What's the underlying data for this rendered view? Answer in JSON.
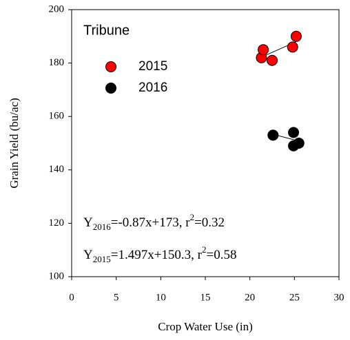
{
  "chart_data": {
    "type": "scatter",
    "title": "Tribune",
    "x_label": "Crop Water Use (in)",
    "y_label": "Grain Yield (bu/ac)",
    "xlim": [
      0,
      30
    ],
    "xticks": [
      0,
      5,
      10,
      15,
      20,
      25,
      30
    ],
    "ylim": [
      100,
      200
    ],
    "yticks": [
      100,
      120,
      140,
      160,
      180,
      200
    ],
    "grid": false,
    "legend": "upper left",
    "series": [
      {
        "name": "2015",
        "color": "#ff0000",
        "x": [
          21.3,
          21.5,
          22.5,
          24.8,
          25.2
        ],
        "values": [
          182,
          185,
          181,
          186,
          190
        ],
        "fit_x": [
          21.3,
          25.2
        ],
        "fit_values": [
          182.2,
          188.0
        ]
      },
      {
        "name": "2016",
        "color": "#000000",
        "x": [
          22.6,
          24.9,
          24.9,
          25.5
        ],
        "values": [
          153,
          154,
          149,
          150
        ],
        "fit_x": [
          22.6,
          25.5
        ],
        "fit_values": [
          153.3,
          150.8
        ]
      }
    ],
    "annotations": [
      [
        {
          "text": "Y"
        },
        {
          "text": "2016",
          "baseline": "sub"
        },
        {
          "text": "=-0.87x+173, r"
        },
        {
          "text": "2",
          "baseline": "super"
        },
        {
          "text": "=0.32"
        }
      ],
      [
        {
          "text": "Y"
        },
        {
          "text": "2015",
          "baseline": "sub"
        },
        {
          "text": "=1.497x+150.3, r"
        },
        {
          "text": "2",
          "baseline": "super"
        },
        {
          "text": "=0.58"
        }
      ]
    ]
  }
}
